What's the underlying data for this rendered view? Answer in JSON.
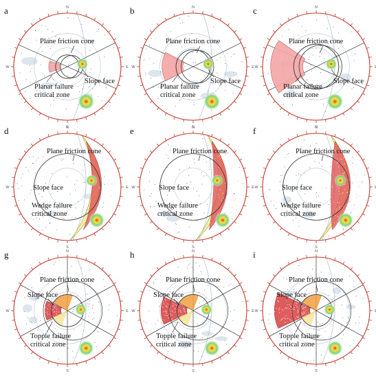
{
  "colors": {
    "outer_ring": "#c0392b",
    "tick": "#c0392b",
    "grid": "#b8c4d0",
    "planar_zone": "#f4a6a6",
    "wedge_zone_fill": "#e05555",
    "wedge_band": "#f5f0a8",
    "topple_zone": "#d94040",
    "topple_orange": "#f0a040",
    "hotspot_outer": "#7fd27f",
    "hotspot_mid": "#f5e342",
    "hotspot_core": "#e03a2a",
    "poles": "#333333"
  },
  "directions": {
    "north": "N",
    "east": "E",
    "south": "S",
    "west": "W"
  },
  "panels": [
    {
      "label": "a",
      "type": "planar",
      "level": 1,
      "annotations": {
        "friction": "Plane friction cone",
        "slope": "Slope face",
        "zone_line1": "Planar failure",
        "zone_line2": "critical zone"
      }
    },
    {
      "label": "b",
      "type": "planar",
      "level": 2,
      "annotations": {
        "friction": "Plane friction cone",
        "slope": "Slope face",
        "zone_line1": "Planar failure",
        "zone_line2": "critical zone"
      }
    },
    {
      "label": "c",
      "type": "planar",
      "level": 3,
      "annotations": {
        "friction": "Plane friction cone",
        "slope": "Slope face",
        "zone_line1": "Planar failure",
        "zone_line2": "critical zone"
      }
    },
    {
      "label": "d",
      "type": "wedge",
      "level": 1,
      "annotations": {
        "friction": "Plane friction cone",
        "slope": "Slope face",
        "zone_line1": "Wedge failure",
        "zone_line2": "critical zone"
      }
    },
    {
      "label": "e",
      "type": "wedge",
      "level": 2,
      "annotations": {
        "friction": "Plane friction cone",
        "slope": "Slope face",
        "zone_line1": "Wedge failure",
        "zone_line2": "critical zone"
      }
    },
    {
      "label": "f",
      "type": "wedge",
      "level": 3,
      "annotations": {
        "friction": "Plane friction cone",
        "slope": "Slope face",
        "zone_line1": "Wedge failure",
        "zone_line2": "critical zone"
      }
    },
    {
      "label": "g",
      "type": "topple",
      "level": 1,
      "annotations": {
        "friction": "Plane friction cone",
        "slope": "Slope face",
        "zone_line1": "Topple failure",
        "zone_line2": "critical zone"
      }
    },
    {
      "label": "h",
      "type": "topple",
      "level": 2,
      "annotations": {
        "friction": "Plane friction cone",
        "slope": "Slope face",
        "zone_line1": "Topple failure",
        "zone_line2": "critical zone"
      }
    },
    {
      "label": "i",
      "type": "topple",
      "level": 3,
      "annotations": {
        "friction": "Plane friction cone",
        "slope": "Slope face",
        "zone_line1": "Topple failure",
        "zone_line2": "critical zone"
      }
    }
  ]
}
